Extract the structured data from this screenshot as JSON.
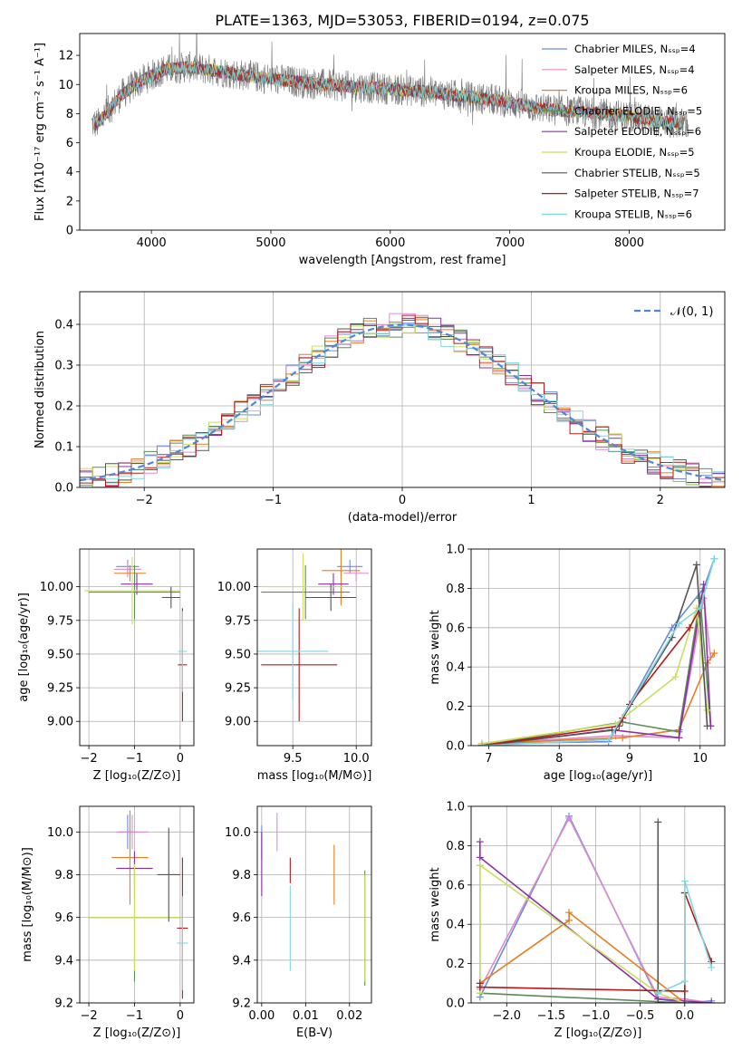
{
  "chart_data": [
    {
      "id": "spectrum",
      "type": "line",
      "title": "PLATE=1363, MJD=53053, FIBERID=0194, z=0.075",
      "xlabel": "wavelength [Angstrom, rest frame]",
      "ylabel": "Flux [fλ10⁻¹⁷ erg cm⁻² s⁻¹ A⁻¹]",
      "xlim": [
        3400,
        8800
      ],
      "ylim": [
        0,
        13.5
      ],
      "xticks": [
        4000,
        5000,
        6000,
        7000,
        8000
      ],
      "yticks": [
        0,
        2,
        4,
        6,
        8,
        10,
        12
      ],
      "grid": false,
      "legend_position": "right",
      "legend": [
        {
          "label": "Chabrier MILES, Nₛₛₚ=4",
          "color": "#6a8bdc"
        },
        {
          "label": "Salpeter MILES, Nₛₛₚ=4",
          "color": "#e08bd0"
        },
        {
          "label": "Kroupa MILES, Nₛₛₚ=6",
          "color": "#e67e22"
        },
        {
          "label": "Chabrier ELODIE, Nₛₛₚ=5",
          "color": "#5b8c5a"
        },
        {
          "label": "Salpeter ELODIE, Nₛₛₚ=6",
          "color": "#8e2fa8"
        },
        {
          "label": "Kroupa ELODIE, Nₛₛₚ=5",
          "color": "#c9e05a"
        },
        {
          "label": "Chabrier STELIB, Nₛₛₚ=5",
          "color": "#555555"
        },
        {
          "label": "Salpeter STELIB, Nₛₛₚ=7",
          "color": "#b51a1a"
        },
        {
          "label": "Kroupa STELIB, Nₛₛₚ=6",
          "color": "#7fd8de"
        }
      ],
      "model_continuum": {
        "x": [
          3550,
          3650,
          3750,
          3900,
          4000,
          4100,
          4300,
          4500,
          4800,
          5000,
          5300,
          5600,
          6000,
          6300,
          6600,
          6900,
          7100,
          7300,
          7600,
          8000,
          8300,
          8500
        ],
        "y": [
          7.3,
          8.3,
          9.3,
          10.2,
          10.6,
          11.0,
          11.2,
          11.0,
          10.6,
          10.4,
          10.1,
          9.9,
          9.7,
          9.5,
          9.2,
          8.9,
          8.6,
          8.3,
          8.1,
          7.8,
          7.4,
          7.3
        ]
      }
    },
    {
      "id": "residuals",
      "type": "line",
      "xlabel": "(data-model)/error",
      "ylabel": "Normed distribution",
      "xlim": [
        -2.5,
        2.5
      ],
      "ylim": [
        0,
        0.48
      ],
      "xticks": [
        -2,
        -1,
        0,
        1,
        2
      ],
      "yticks": [
        0.0,
        0.1,
        0.2,
        0.3,
        0.4
      ],
      "grid": true,
      "legend_position": "top-right",
      "gaussian_label": "𝒩(0, 1)",
      "gaussian_color": "#4f86d9"
    },
    {
      "id": "age-vs-Z",
      "type": "scatter",
      "xlabel": "Z [log₁₀(Z/Z⊙)]",
      "ylabel": "age  [log₁₀(age/yr)]",
      "xlim": [
        -2.2,
        0.3
      ],
      "ylim": [
        8.82,
        10.28
      ],
      "xticks": [
        -2,
        -1,
        0
      ],
      "yticks": [
        9.0,
        9.25,
        9.5,
        9.75,
        10.0
      ],
      "grid": true,
      "errorbars": [
        {
          "x": -1.15,
          "y": 10.15,
          "dx": 0.25,
          "dy": 0.05,
          "color": "#6a8bdc"
        },
        {
          "x": -1.15,
          "y": 10.13,
          "dx": 0.3,
          "dy": 0.06,
          "color": "#e08bd0"
        },
        {
          "x": -1.1,
          "y": 10.1,
          "dx": 0.35,
          "dy": 0.06,
          "color": "#e67e22"
        },
        {
          "x": -1.0,
          "y": 9.96,
          "dx": 1.0,
          "dy": 0.2,
          "color": "#5b8c5a"
        },
        {
          "x": -0.95,
          "y": 10.02,
          "dx": 0.35,
          "dy": 0.08,
          "color": "#8e2fa8"
        },
        {
          "x": -1.05,
          "y": 9.97,
          "dx": 1.05,
          "dy": 0.25,
          "color": "#c9e05a"
        },
        {
          "x": -0.2,
          "y": 9.92,
          "dx": 0.2,
          "dy": 0.08,
          "color": "#555555"
        },
        {
          "x": 0.05,
          "y": 9.42,
          "dx": 0.1,
          "dy": 0.42,
          "color": "#b51a1a"
        },
        {
          "x": 0.05,
          "y": 9.52,
          "dx": 0.1,
          "dy": 0.3,
          "color": "#7fd8de"
        }
      ]
    },
    {
      "id": "age-vs-mass",
      "type": "scatter",
      "xlabel": "mass [log₁₀(M/M⊙)]",
      "ylabel": "",
      "xlim": [
        9.22,
        10.12
      ],
      "ylim": [
        8.82,
        10.28
      ],
      "xticks": [
        9.5,
        10.0
      ],
      "yticks": [
        9.0,
        9.25,
        9.5,
        9.75,
        10.0
      ],
      "grid": true,
      "errorbars": [
        {
          "x": 9.95,
          "y": 10.15,
          "dx": 0.1,
          "dy": 0.05,
          "color": "#6a8bdc"
        },
        {
          "x": 10.0,
          "y": 10.1,
          "dx": 0.1,
          "dy": 0.06,
          "color": "#e08bd0"
        },
        {
          "x": 9.88,
          "y": 10.12,
          "dx": 0.15,
          "dy": 0.26,
          "color": "#e67e22"
        },
        {
          "x": 9.6,
          "y": 9.96,
          "dx": 0.35,
          "dy": 0.2,
          "color": "#5b8c5a"
        },
        {
          "x": 9.82,
          "y": 10.02,
          "dx": 0.12,
          "dy": 0.08,
          "color": "#8e2fa8"
        },
        {
          "x": 9.58,
          "y": 10.0,
          "dx": 0.33,
          "dy": 0.25,
          "color": "#c9e05a"
        },
        {
          "x": 9.8,
          "y": 9.92,
          "dx": 0.2,
          "dy": 0.1,
          "color": "#555555"
        },
        {
          "x": 9.55,
          "y": 9.42,
          "dx": 0.3,
          "dy": 0.42,
          "color": "#b51a1a"
        },
        {
          "x": 9.5,
          "y": 9.52,
          "dx": 0.28,
          "dy": 0.36,
          "color": "#7fd8de"
        }
      ]
    },
    {
      "id": "massweight-vs-age",
      "type": "line",
      "xlabel": "age  [log₁₀(age/yr)]",
      "ylabel": "mass weight",
      "xlim": [
        6.75,
        10.35
      ],
      "ylim": [
        0,
        1.0
      ],
      "xticks": [
        7,
        8,
        9,
        10
      ],
      "yticks": [
        0.0,
        0.2,
        0.4,
        0.6,
        0.8,
        1.0
      ],
      "grid": true,
      "series": [
        {
          "color": "#6a8bdc",
          "x": [
            6.9,
            8.7,
            9.6,
            10.05,
            10.2
          ],
          "y": [
            0.01,
            0.02,
            0.6,
            0.8,
            0.95
          ]
        },
        {
          "color": "#e08bd0",
          "x": [
            6.9,
            8.8,
            9.7,
            10.05,
            10.15
          ],
          "y": [
            0.01,
            0.05,
            0.04,
            0.75,
            0.45
          ]
        },
        {
          "color": "#e67e22",
          "x": [
            6.9,
            8.9,
            9.7,
            10.1,
            10.2
          ],
          "y": [
            0.01,
            0.04,
            0.08,
            0.42,
            0.47
          ]
        },
        {
          "color": "#5b8c5a",
          "x": [
            6.9,
            8.9,
            9.7,
            10.0,
            10.15
          ],
          "y": [
            0.0,
            0.12,
            0.07,
            0.75,
            0.1
          ]
        },
        {
          "color": "#8e2fa8",
          "x": [
            6.9,
            8.75,
            9.7,
            10.05,
            10.15
          ],
          "y": [
            0.0,
            0.08,
            0.04,
            0.82,
            0.1
          ]
        },
        {
          "color": "#c9e05a",
          "x": [
            6.9,
            8.8,
            9.65,
            9.95,
            10.1
          ],
          "y": [
            0.01,
            0.11,
            0.35,
            0.7,
            0.18
          ]
        },
        {
          "color": "#555555",
          "x": [
            6.9,
            8.8,
            9.6,
            9.95,
            10.1
          ],
          "y": [
            0.0,
            0.08,
            0.55,
            0.92,
            0.1
          ]
        },
        {
          "color": "#b51a1a",
          "x": [
            6.9,
            8.85,
            8.9,
            9.0,
            9.85,
            10.0
          ],
          "y": [
            0.0,
            0.1,
            0.14,
            0.21,
            0.6,
            0.7
          ]
        },
        {
          "color": "#7fd8de",
          "x": [
            6.9,
            8.7,
            9.7,
            10.0,
            10.2
          ],
          "y": [
            0.0,
            0.03,
            0.62,
            0.7,
            0.95
          ]
        }
      ]
    },
    {
      "id": "mass-vs-Z",
      "type": "scatter",
      "xlabel": "Z [log₁₀(Z/Z⊙)]",
      "ylabel": "mass [log₁₀(M/M⊙)]",
      "xlim": [
        -2.2,
        0.3
      ],
      "ylim": [
        9.2,
        10.12
      ],
      "xticks": [
        -2,
        -1,
        0
      ],
      "yticks": [
        9.2,
        9.4,
        9.6,
        9.8,
        10.0
      ],
      "grid": true,
      "errorbars": [
        {
          "x": -1.15,
          "y": 10.0,
          "dx": 0.2,
          "dy": 0.08,
          "color": "#6a8bdc"
        },
        {
          "x": -1.05,
          "y": 10.0,
          "dx": 0.35,
          "dy": 0.08,
          "color": "#e08bd0"
        },
        {
          "x": -1.1,
          "y": 9.88,
          "dx": 0.4,
          "dy": 0.22,
          "color": "#e67e22"
        },
        {
          "x": -1.0,
          "y": 9.6,
          "dx": 1.0,
          "dy": 0.3,
          "color": "#5b8c5a"
        },
        {
          "x": -1.0,
          "y": 9.83,
          "dx": 0.4,
          "dy": 0.08,
          "color": "#8e2fa8"
        },
        {
          "x": -1.0,
          "y": 9.6,
          "dx": 1.0,
          "dy": 0.25,
          "color": "#c9e05a"
        },
        {
          "x": -0.25,
          "y": 9.8,
          "dx": 0.25,
          "dy": 0.22,
          "color": "#555555"
        },
        {
          "x": 0.05,
          "y": 9.55,
          "dx": 0.12,
          "dy": 0.33,
          "color": "#b51a1a"
        },
        {
          "x": 0.05,
          "y": 9.48,
          "dx": 0.12,
          "dy": 0.22,
          "color": "#7fd8de"
        }
      ]
    },
    {
      "id": "mass-vs-EBV",
      "type": "scatter",
      "xlabel": "E(B-V)",
      "ylabel": "",
      "xlim": [
        -0.001,
        0.025
      ],
      "ylim": [
        9.2,
        10.12
      ],
      "xticks": [
        0.0,
        0.01,
        0.02
      ],
      "yticks": [
        9.2,
        9.4,
        9.6,
        9.8,
        10.0
      ],
      "grid": true,
      "errorbars": [
        {
          "x": 0.0,
          "y": 9.95,
          "dx": 0.0,
          "dy": 0.08,
          "color": "#6a8bdc"
        },
        {
          "x": 0.0,
          "y": 9.85,
          "dx": 0.0,
          "dy": 0.15,
          "color": "#8e2fa8"
        },
        {
          "x": 0.0035,
          "y": 10.0,
          "dx": 0.0,
          "dy": 0.09,
          "color": "#e08bd0"
        },
        {
          "x": 0.0065,
          "y": 9.82,
          "dx": 0.0,
          "dy": 0.06,
          "color": "#b51a1a"
        },
        {
          "x": 0.0065,
          "y": 9.55,
          "dx": 0.0,
          "dy": 0.2,
          "color": "#7fd8de"
        },
        {
          "x": 0.0165,
          "y": 9.8,
          "dx": 0.0,
          "dy": 0.14,
          "color": "#e67e22"
        },
        {
          "x": 0.0235,
          "y": 9.55,
          "dx": 0.0,
          "dy": 0.27,
          "color": "#5b8c5a"
        },
        {
          "x": 0.0235,
          "y": 9.55,
          "dx": 0.0,
          "dy": 0.25,
          "color": "#c9e05a"
        }
      ]
    },
    {
      "id": "massweight-vs-Z",
      "type": "line",
      "xlabel": "Z [log₁₀(Z/Z⊙)]",
      "ylabel": "mass weight",
      "xlim": [
        -2.4,
        0.45
      ],
      "ylim": [
        0,
        1.0
      ],
      "xticks": [
        -2.0,
        -1.5,
        -1.0,
        -0.5,
        0.0
      ],
      "yticks": [
        0.0,
        0.2,
        0.4,
        0.6,
        0.8,
        1.0
      ],
      "grid": true,
      "series": [
        {
          "color": "#6a8bdc",
          "x": [
            -2.3,
            -1.3,
            -0.3,
            0.0,
            0.3
          ],
          "y": [
            0.03,
            0.95,
            0.02,
            0.0,
            0.01
          ]
        },
        {
          "color": "#e08bd0",
          "x": [
            -2.3,
            -1.3,
            -0.3,
            0.0,
            0.3
          ],
          "y": [
            0.07,
            0.94,
            0.03,
            0.02,
            0.0
          ]
        },
        {
          "color": "#e67e22",
          "x": [
            -2.3,
            -1.3,
            -1.3,
            0.0
          ],
          "y": [
            0.1,
            0.42,
            0.46,
            0.0
          ]
        },
        {
          "color": "#5b8c5a",
          "x": [
            -2.3,
            -2.3,
            0.0
          ],
          "y": [
            0.7,
            0.05,
            0.0
          ]
        },
        {
          "color": "#8e2fa8",
          "x": [
            -2.3,
            -2.3,
            -0.3,
            0.3
          ],
          "y": [
            0.82,
            0.74,
            0.02,
            0.0
          ]
        },
        {
          "color": "#c9e05a",
          "x": [
            -2.3,
            -2.3,
            -0.3,
            0.0
          ],
          "y": [
            0.05,
            0.7,
            0.05,
            0.0
          ]
        },
        {
          "color": "#555555",
          "x": [
            -0.3,
            -0.3,
            0.0,
            0.0
          ],
          "y": [
            0.92,
            0.0,
            0.0,
            0.56
          ]
        },
        {
          "color": "#b51a1a",
          "x": [
            -2.3,
            -2.3,
            0.0,
            0.0,
            0.3
          ],
          "y": [
            0.1,
            0.08,
            0.06,
            0.56,
            0.21
          ]
        },
        {
          "color": "#7fd8de",
          "x": [
            -0.3,
            0.0,
            0.0,
            0.3
          ],
          "y": [
            0.05,
            0.11,
            0.62,
            0.18
          ]
        }
      ]
    }
  ]
}
